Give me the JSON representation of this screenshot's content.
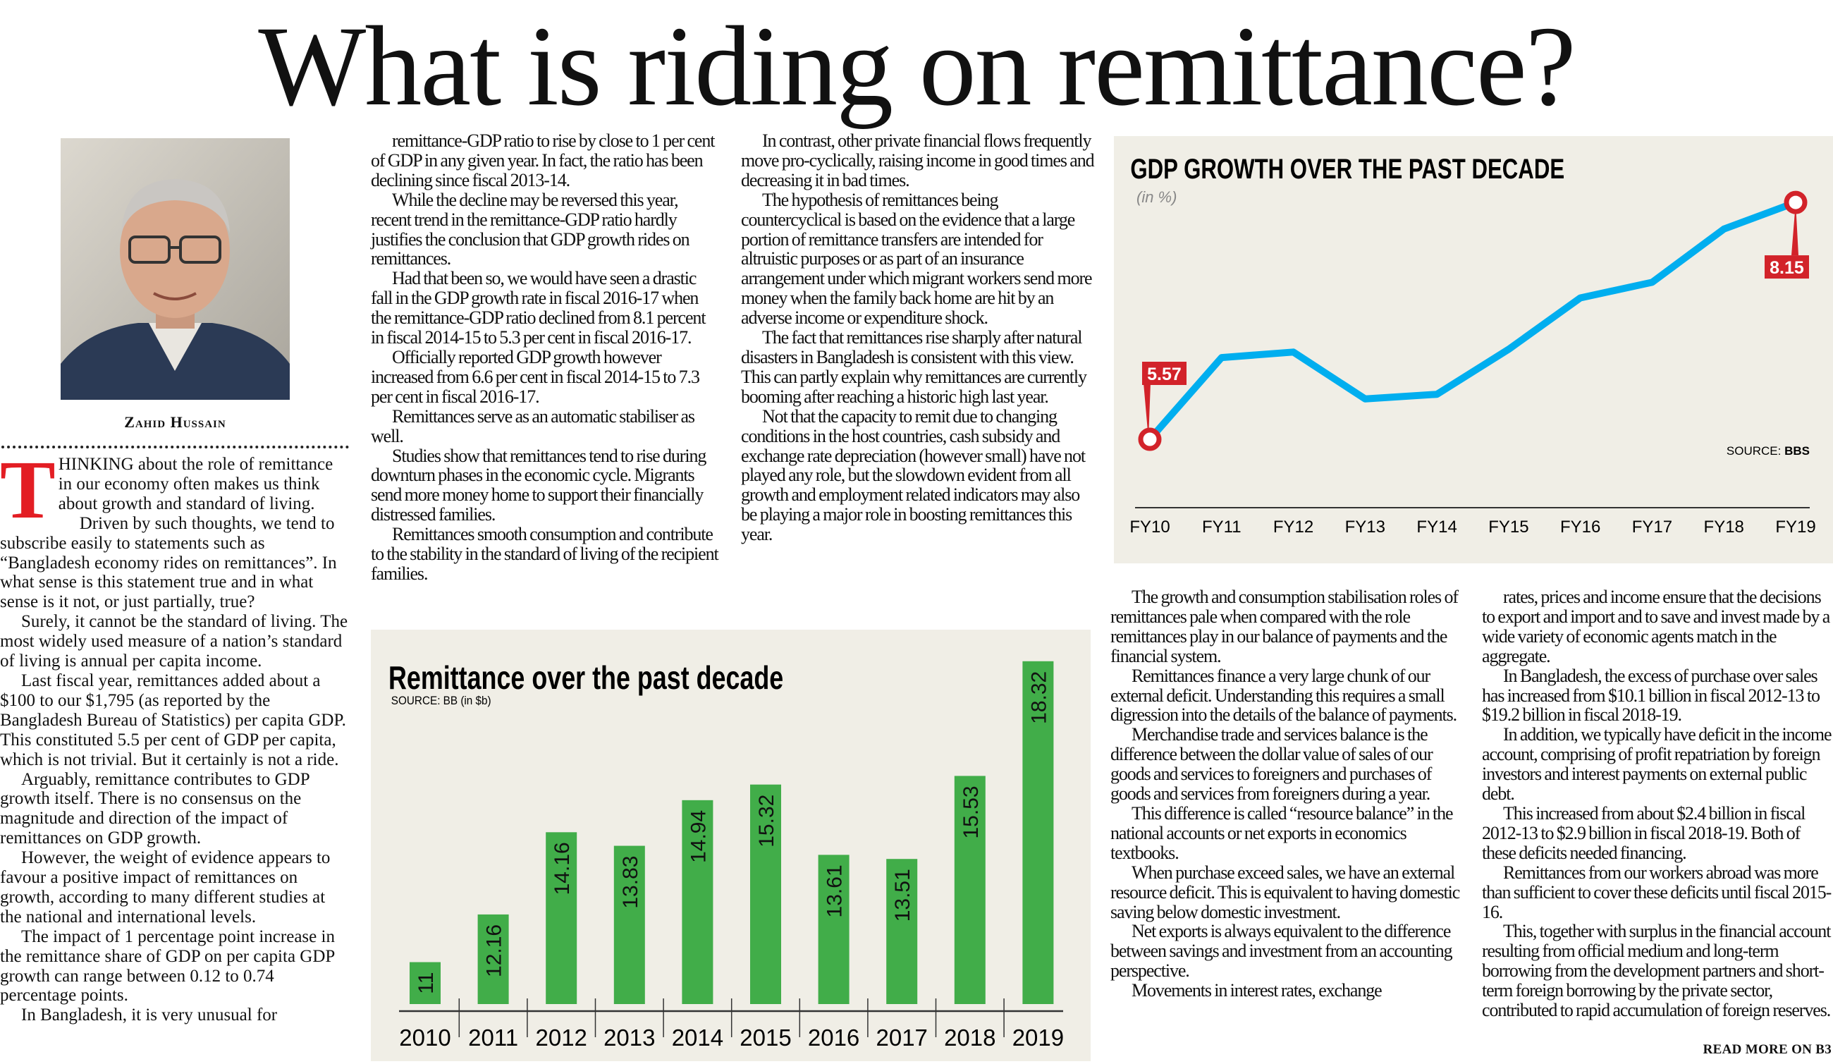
{
  "headline": "What is riding on remittance?",
  "author": "Zahid Hussain",
  "read_more": "READ MORE ON B3",
  "colors": {
    "dropcap": "#e31e24",
    "gdp_line": "#00aeef",
    "marker": "#d2232a",
    "bar": "#41ad49",
    "chart_bg": "#f0eee6"
  },
  "article": {
    "dropcap": "T",
    "col1": [
      "HINKING about the role of remittance in our economy often makes us think about growth and standard of living.",
      "Driven by such thoughts, we tend to subscribe easily to statements such as “Bangladesh economy rides on remittances”. In what sense is this statement true and in what sense is it not, or just partially, true?",
      "Surely, it cannot be the standard of living. The most widely used measure of a nation’s standard of living is annual per capita income.",
      "Last fiscal year, remittances added about a $100 to our $1,795 (as reported by the Bangladesh Bureau of Statistics) per capita GDP. This constituted 5.5 per cent of GDP per capita, which is not trivial.  But it certainly is not a ride.",
      "Arguably, remittance contributes to GDP growth itself.  There is no consensus on the magnitude and direction of the impact of remittances on GDP growth.",
      "However, the weight of evidence appears to favour a positive impact of remittances on growth, according to many different studies at the national and international levels.",
      "The impact of 1 percentage point increase in the remittance share of GDP on per capita GDP growth can range between 0.12 to 0.74 percentage points.",
      "In Bangladesh, it is very unusual for"
    ],
    "col2": [
      "remittance-GDP ratio to rise by close to 1 per cent of GDP in any given year. In fact, the ratio has been declining since fiscal 2013-14.",
      "While the decline may be reversed this year, recent trend in the remittance-GDP ratio hardly justifies the conclusion that GDP growth rides on remittances.",
      "Had that been so, we would have seen a drastic fall in the GDP growth rate in fiscal 2016-17 when the remittance-GDP ratio declined from 8.1 percent in fiscal 2014-15 to 5.3 per cent in fiscal 2016-17.",
      "Officially reported GDP growth however increased from 6.6 per cent in fiscal 2014-15 to 7.3 per cent in fiscal 2016-17.",
      "Remittances serve as an automatic stabiliser as well.",
      "Studies show that remittances tend to rise during downturn phases in the economic cycle. Migrants send more money home to support their financially distressed families.",
      "Remittances smooth consumption and contribute to the stability in the standard of living of the recipient families."
    ],
    "col3": [
      "In contrast, other private financial flows frequently move pro-cyclically, raising income in good times and decreasing it in bad times.",
      "The hypothesis of remittances being countercyclical is based on the evidence that a large portion of remittance transfers are intended for altruistic purposes or as part of an insurance arrangement under which migrant workers send more money when the family back home are hit by an adverse income or expenditure shock.",
      "The fact that remittances rise sharply after natural disasters in Bangladesh is consistent with this view. This can partly explain why remittances are currently booming after reaching a historic high last year.",
      "Not that the capacity to remit due to changing conditions in the host countries, cash subsidy and exchange rate depreciation (however small) have not played any role, but the slowdown evident from all growth and employment related indicators may also be playing a major role in boosting remittances this year."
    ],
    "col4": [
      "The growth and consumption stabilisation roles of remittances pale when compared with the role remittances play in our balance of payments and the financial system.",
      "Remittances finance a very large chunk of our external deficit. Understanding this requires a small digression into the details of the balance of payments.",
      "Merchandise trade and services balance is the difference between the dollar value of sales of our goods and services to foreigners and purchases of goods and services from foreigners during a year.",
      "This difference is called “resource balance” in the national accounts or net exports in economics textbooks.",
      "When purchase exceed sales, we have an external resource deficit.  This is equivalent to having domestic saving below domestic investment.",
      "Net exports is always equivalent to the difference between savings and investment from an accounting perspective.",
      "Movements in interest rates, exchange"
    ],
    "col5": [
      "rates, prices and income ensure that the decisions to export and import and to save and invest made by a wide variety of economic agents match in the aggregate.",
      "In Bangladesh, the excess of purchase over sales has increased from $10.1 billion in fiscal 2012-13 to $19.2 billion in fiscal 2018-19.",
      "In addition, we typically have deficit in the income account, comprising of profit repatriation by foreign investors and interest payments on external public debt.",
      "This increased from about $2.4 billion in fiscal 2012-13 to $2.9 billion in fiscal 2018-19.  Both of these deficits needed financing.",
      "Remittances from our workers abroad was more than sufficient to cover these deficits until fiscal 2015-16.",
      "This, together with surplus in the financial account resulting from official medium and long-term borrowing from the development partners and short-term foreign borrowing by the private sector, contributed to rapid accumulation of foreign reserves."
    ]
  },
  "chart_data": [
    {
      "type": "line",
      "title": "GDP GROWTH OVER THE PAST DECADE",
      "subtitle": "(in %)",
      "source_label": "SOURCE: ",
      "source": "BBS",
      "categories": [
        "FY10",
        "FY11",
        "FY12",
        "FY13",
        "FY14",
        "FY15",
        "FY16",
        "FY17",
        "FY18",
        "FY19"
      ],
      "values": [
        5.57,
        6.46,
        6.52,
        6.01,
        6.06,
        6.55,
        7.11,
        7.28,
        7.86,
        8.15
      ],
      "labeled_points": [
        {
          "index": 0,
          "label": "5.57"
        },
        {
          "index": 9,
          "label": "8.15"
        }
      ],
      "ylim": [
        4.83,
        8.15
      ],
      "grid": false
    },
    {
      "type": "bar",
      "title": "Remittance over the past decade",
      "subtitle": "SOURCE: BB (in $b)",
      "categories": [
        "2010",
        "2011",
        "2012",
        "2013",
        "2014",
        "2015",
        "2016",
        "2017",
        "2018",
        "2019"
      ],
      "values": [
        11,
        12.16,
        14.16,
        13.83,
        14.94,
        15.32,
        13.61,
        13.51,
        15.53,
        18.32
      ],
      "value_labels": [
        "11",
        "12.16",
        "14.16",
        "13.83",
        "14.94",
        "15.32",
        "13.61",
        "13.51",
        "15.53",
        "18.32"
      ],
      "ylim": [
        9.98,
        18.32
      ],
      "grid": false
    }
  ]
}
